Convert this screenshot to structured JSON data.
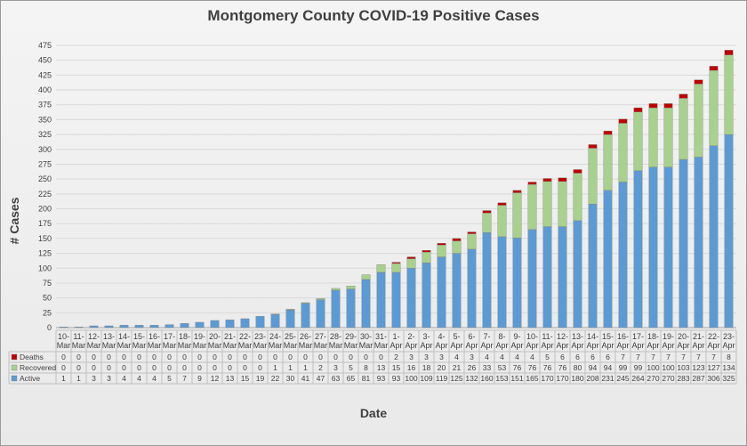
{
  "chart_data": {
    "type": "bar",
    "stacked": true,
    "title": "Montgomery County COVID-19 Positive Cases",
    "xlabel": "Date",
    "ylabel": "# Cases",
    "ylim": [
      0,
      475
    ],
    "ytick_step": 25,
    "grid": true,
    "legend": "data-table-left",
    "categories": [
      [
        "10-",
        "Mar"
      ],
      [
        "11-",
        "Mar"
      ],
      [
        "12-",
        "Mar"
      ],
      [
        "13-",
        "Mar"
      ],
      [
        "14-",
        "Mar"
      ],
      [
        "15-",
        "Mar"
      ],
      [
        "16-",
        "Mar"
      ],
      [
        "17-",
        "Mar"
      ],
      [
        "18-",
        "Mar"
      ],
      [
        "19-",
        "Mar"
      ],
      [
        "20-",
        "Mar"
      ],
      [
        "21-",
        "Mar"
      ],
      [
        "22-",
        "Mar"
      ],
      [
        "23-",
        "Mar"
      ],
      [
        "24-",
        "Mar"
      ],
      [
        "25-",
        "Mar"
      ],
      [
        "26-",
        "Mar"
      ],
      [
        "27-",
        "Mar"
      ],
      [
        "28-",
        "Mar"
      ],
      [
        "29-",
        "Mar"
      ],
      [
        "30-",
        "Mar"
      ],
      [
        "31-",
        "Mar"
      ],
      [
        "1-",
        "Apr"
      ],
      [
        "2-",
        "Apr"
      ],
      [
        "3-",
        "Apr"
      ],
      [
        "4-",
        "Apr"
      ],
      [
        "5-",
        "Apr"
      ],
      [
        "6-",
        "Apr"
      ],
      [
        "7-",
        "Apr"
      ],
      [
        "8-",
        "Apr"
      ],
      [
        "9-",
        "Apr"
      ],
      [
        "10-",
        "Apr"
      ],
      [
        "11-",
        "Apr"
      ],
      [
        "12-",
        "Apr"
      ],
      [
        "13-",
        "Apr"
      ],
      [
        "14-",
        "Apr"
      ],
      [
        "15-",
        "Apr"
      ],
      [
        "16-",
        "Apr"
      ],
      [
        "17-",
        "Apr"
      ],
      [
        "18-",
        "Apr"
      ],
      [
        "19-",
        "Apr"
      ],
      [
        "20-",
        "Apr"
      ],
      [
        "21-",
        "Apr"
      ],
      [
        "22-",
        "Apr"
      ],
      [
        "23-",
        "Apr"
      ]
    ],
    "series": [
      {
        "name": "Active",
        "color": "#5b9bd5",
        "values": [
          1,
          1,
          3,
          3,
          4,
          4,
          4,
          5,
          7,
          9,
          12,
          13,
          15,
          19,
          22,
          30,
          41,
          47,
          63,
          65,
          81,
          93,
          93,
          100,
          109,
          119,
          125,
          132,
          160,
          153,
          151,
          165,
          170,
          170,
          180,
          208,
          231,
          245,
          264,
          270,
          270,
          283,
          287,
          306,
          325
        ]
      },
      {
        "name": "Recovered",
        "color": "#a9d18e",
        "values": [
          0,
          0,
          0,
          0,
          0,
          0,
          0,
          0,
          0,
          0,
          0,
          0,
          0,
          0,
          1,
          1,
          1,
          2,
          3,
          5,
          8,
          13,
          15,
          16,
          18,
          20,
          21,
          26,
          33,
          53,
          76,
          76,
          76,
          76,
          80,
          94,
          94,
          99,
          99,
          100,
          100,
          103,
          123,
          127,
          134
        ]
      },
      {
        "name": "Deaths",
        "color": "#c00000",
        "values": [
          0,
          0,
          0,
          0,
          0,
          0,
          0,
          0,
          0,
          0,
          0,
          0,
          0,
          0,
          0,
          0,
          0,
          0,
          0,
          0,
          0,
          0,
          2,
          3,
          3,
          3,
          4,
          3,
          4,
          4,
          4,
          4,
          5,
          6,
          6,
          6,
          6,
          7,
          7,
          7,
          7,
          7,
          7,
          7,
          8
        ]
      }
    ]
  }
}
